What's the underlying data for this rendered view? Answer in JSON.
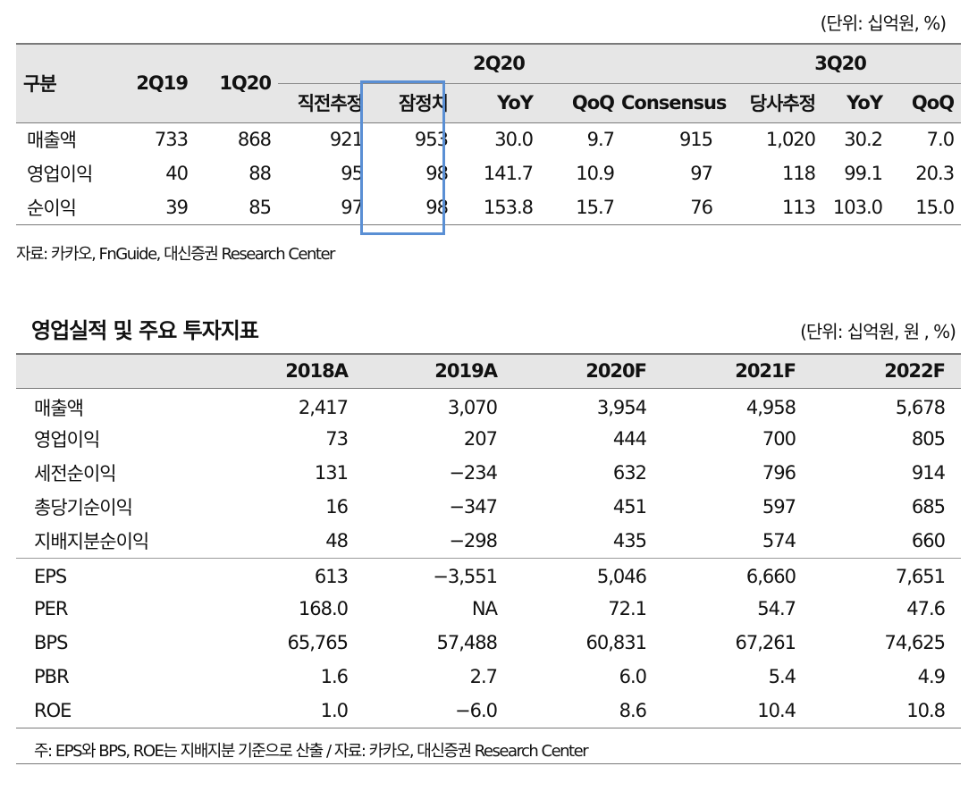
{
  "table1": {
    "unit": "(단위: 십억원, %)",
    "header": {
      "category": "구분",
      "q1": "2Q19",
      "q2": "1Q20",
      "group1": "2Q20",
      "group2": "3Q20",
      "sub": [
        "직전추정",
        "잠정치",
        "YoY",
        "QoQ",
        "Consensus",
        "당사추정",
        "YoY",
        "QoQ"
      ]
    },
    "rows": [
      {
        "label": "매출액",
        "values": [
          "733",
          "868",
          "921",
          "953",
          "30.0",
          "9.7",
          "915",
          "1,020",
          "30.2",
          "7.0"
        ]
      },
      {
        "label": "영업이익",
        "values": [
          "40",
          "88",
          "95",
          "98",
          "141.7",
          "10.9",
          "97",
          "118",
          "99.1",
          "20.3"
        ]
      },
      {
        "label": "순이익",
        "values": [
          "39",
          "85",
          "97",
          "98",
          "153.8",
          "15.7",
          "76",
          "113",
          "103.0",
          "15.0"
        ]
      }
    ],
    "source": "자료: 카카오, FnGuide, 대신증권 Research Center"
  },
  "table2": {
    "title": "영업실적 및 주요 투자지표",
    "unit": "(단위: 십억원, 원 , %)",
    "years": [
      "2018A",
      "2019A",
      "2020F",
      "2021F",
      "2022F"
    ],
    "group1": [
      {
        "label": "매출액",
        "values": [
          "2,417",
          "3,070",
          "3,954",
          "4,958",
          "5,678"
        ]
      },
      {
        "label": "영업이익",
        "values": [
          "73",
          "207",
          "444",
          "700",
          "805"
        ]
      },
      {
        "label": "세전순이익",
        "values": [
          "131",
          "−234",
          "632",
          "796",
          "914"
        ]
      },
      {
        "label": "총당기순이익",
        "values": [
          "16",
          "−347",
          "451",
          "597",
          "685"
        ]
      },
      {
        "label": "지배지분순이익",
        "values": [
          "48",
          "−298",
          "435",
          "574",
          "660"
        ]
      }
    ],
    "group2": [
      {
        "label": "EPS",
        "values": [
          "613",
          "−3,551",
          "5,046",
          "6,660",
          "7,651"
        ]
      },
      {
        "label": "PER",
        "values": [
          "168.0",
          "NA",
          "72.1",
          "54.7",
          "47.6"
        ]
      },
      {
        "label": "BPS",
        "values": [
          "65,765",
          "57,488",
          "60,831",
          "67,261",
          "74,625"
        ]
      },
      {
        "label": "PBR",
        "values": [
          "1.6",
          "2.7",
          "6.0",
          "5.4",
          "4.9"
        ]
      },
      {
        "label": "ROE",
        "values": [
          "1.0",
          "−6.0",
          "8.6",
          "10.4",
          "10.8"
        ]
      }
    ],
    "note": "주: EPS와 BPS, ROE는 지배지분 기준으로 산출 / 자료: 카카오, 대신증권 Research Center"
  }
}
